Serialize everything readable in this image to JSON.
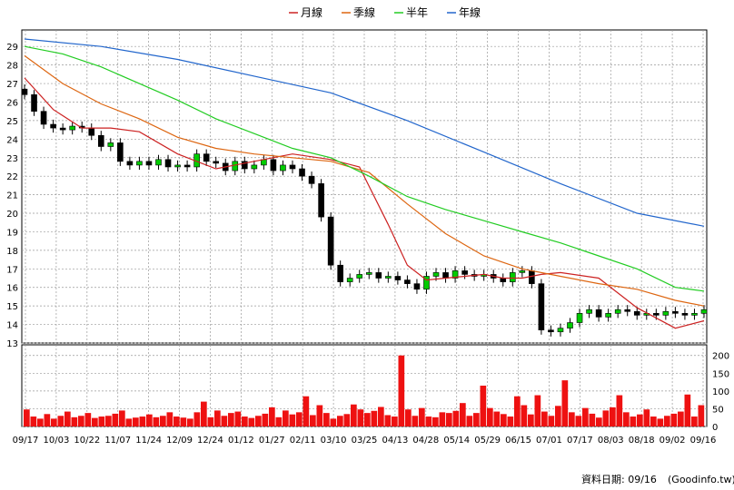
{
  "chart_data": {
    "type": "line",
    "price_panel": {
      "ylim": [
        13,
        29.5
      ],
      "y_ticks": [
        "13",
        "14",
        "15",
        "16",
        "17",
        "18",
        "19",
        "20",
        "21",
        "22",
        "23",
        "24",
        "25",
        "26",
        "27",
        "28",
        "29"
      ],
      "series": [
        {
          "name": "月線",
          "color": "#cc2222",
          "x": [
            0,
            15,
            30,
            45,
            60,
            80,
            100,
            120,
            140,
            160,
            175,
            190,
            200,
            210,
            220,
            230,
            240,
            250,
            260,
            270,
            280,
            300,
            320,
            340,
            355
          ],
          "values": [
            27.3,
            25.6,
            24.6,
            24.6,
            24.4,
            23.2,
            22.4,
            22.8,
            23.2,
            22.9,
            22.5,
            19.4,
            17.2,
            16.4,
            16.5,
            16.6,
            16.7,
            16.5,
            16.5,
            16.7,
            16.8,
            16.5,
            14.9,
            13.8,
            14.2
          ]
        },
        {
          "name": "季線",
          "color": "#dd6611",
          "x": [
            0,
            20,
            40,
            60,
            80,
            100,
            120,
            140,
            160,
            180,
            200,
            220,
            240,
            260,
            280,
            300,
            320,
            340,
            355
          ],
          "values": [
            28.5,
            27.0,
            25.9,
            25.1,
            24.1,
            23.5,
            23.2,
            23.0,
            22.8,
            22.2,
            20.5,
            18.9,
            17.7,
            17.0,
            16.6,
            16.2,
            15.9,
            15.3,
            15.0
          ]
        },
        {
          "name": "半年",
          "color": "#22cc22",
          "x": [
            0,
            20,
            40,
            60,
            80,
            100,
            120,
            140,
            160,
            180,
            200,
            220,
            240,
            260,
            280,
            300,
            320,
            340,
            355
          ],
          "values": [
            29.0,
            28.6,
            27.9,
            27.0,
            26.1,
            25.1,
            24.3,
            23.5,
            23.0,
            22.0,
            20.9,
            20.2,
            19.6,
            19.0,
            18.4,
            17.7,
            17.0,
            16.0,
            15.8
          ]
        },
        {
          "name": "年線",
          "color": "#2266cc",
          "x": [
            0,
            40,
            80,
            120,
            160,
            200,
            240,
            280,
            320,
            355
          ],
          "values": [
            29.4,
            29.0,
            28.3,
            27.4,
            26.5,
            25.0,
            23.3,
            21.6,
            20.0,
            19.3
          ]
        }
      ],
      "candles": {
        "up_color": "#00cc00",
        "down_color": "#000000",
        "x": [
          0,
          5,
          10,
          15,
          20,
          25,
          30,
          35,
          40,
          45,
          50,
          55,
          60,
          65,
          70,
          75,
          80,
          85,
          90,
          95,
          100,
          105,
          110,
          115,
          120,
          125,
          130,
          135,
          140,
          145,
          150,
          155,
          160,
          165,
          170,
          175,
          180,
          185,
          190,
          195,
          200,
          205,
          210,
          215,
          220,
          225,
          230,
          235,
          240,
          245,
          250,
          255,
          260,
          265,
          270,
          275,
          280,
          285,
          290,
          295,
          300,
          305,
          310,
          315,
          320,
          325,
          330,
          335,
          340,
          345,
          350,
          355
        ],
        "close": [
          26.4,
          25.5,
          24.8,
          24.6,
          24.5,
          24.7,
          24.6,
          24.2,
          23.6,
          23.8,
          22.8,
          22.6,
          22.8,
          22.6,
          22.9,
          22.5,
          22.6,
          22.5,
          23.2,
          22.8,
          22.7,
          22.3,
          22.8,
          22.4,
          22.6,
          22.9,
          22.3,
          22.6,
          22.4,
          22.0,
          21.6,
          19.8,
          17.2,
          16.3,
          16.5,
          16.7,
          16.8,
          16.5,
          16.6,
          16.4,
          16.2,
          15.9,
          16.6,
          16.8,
          16.5,
          16.9,
          16.7,
          16.6,
          16.7,
          16.5,
          16.3,
          16.8,
          16.9,
          16.2,
          13.7,
          13.6,
          13.8,
          14.1,
          14.6,
          14.8,
          14.4,
          14.6,
          14.8,
          14.7,
          14.5,
          14.6,
          14.5,
          14.7,
          14.6,
          14.5,
          14.6,
          14.8
        ]
      }
    },
    "volume_panel": {
      "ylim": [
        0,
        230
      ],
      "y_ticks": [
        "0",
        "50",
        "100",
        "150",
        "200"
      ],
      "bar_color": "#ee1111",
      "values": [
        48,
        28,
        22,
        35,
        22,
        30,
        42,
        26,
        30,
        38,
        24,
        28,
        30,
        36,
        45,
        22,
        25,
        28,
        34,
        26,
        30,
        40,
        28,
        25,
        22,
        40,
        70,
        26,
        45,
        30,
        38,
        42,
        28,
        24,
        30,
        36,
        54,
        26,
        45,
        34,
        40,
        85,
        32,
        60,
        38,
        22,
        30,
        35,
        62,
        48,
        38,
        44,
        55,
        32,
        28,
        200,
        48,
        30,
        52,
        28,
        26,
        40,
        38,
        44,
        66,
        30,
        38,
        115,
        52,
        42,
        35,
        28,
        85,
        60,
        34,
        88,
        42,
        30,
        58,
        130,
        40,
        30,
        52,
        36,
        25,
        45,
        54,
        88,
        40,
        28,
        34,
        48,
        28,
        22,
        30,
        36,
        42,
        90,
        28,
        60
      ]
    },
    "x_ticks": [
      "09/17",
      "10/03",
      "10/22",
      "11/07",
      "11/24",
      "12/09",
      "12/24",
      "01/12",
      "01/27",
      "02/11",
      "03/10",
      "03/25",
      "04/13",
      "04/28",
      "05/14",
      "05/29",
      "06/15",
      "07/01",
      "07/17",
      "08/03",
      "08/18",
      "09/02",
      "09/16"
    ],
    "legend_placement": "top-center",
    "grid": true
  },
  "footer": {
    "date_label": "資料日期: 09/16",
    "source": "(Goodinfo.tw)"
  }
}
